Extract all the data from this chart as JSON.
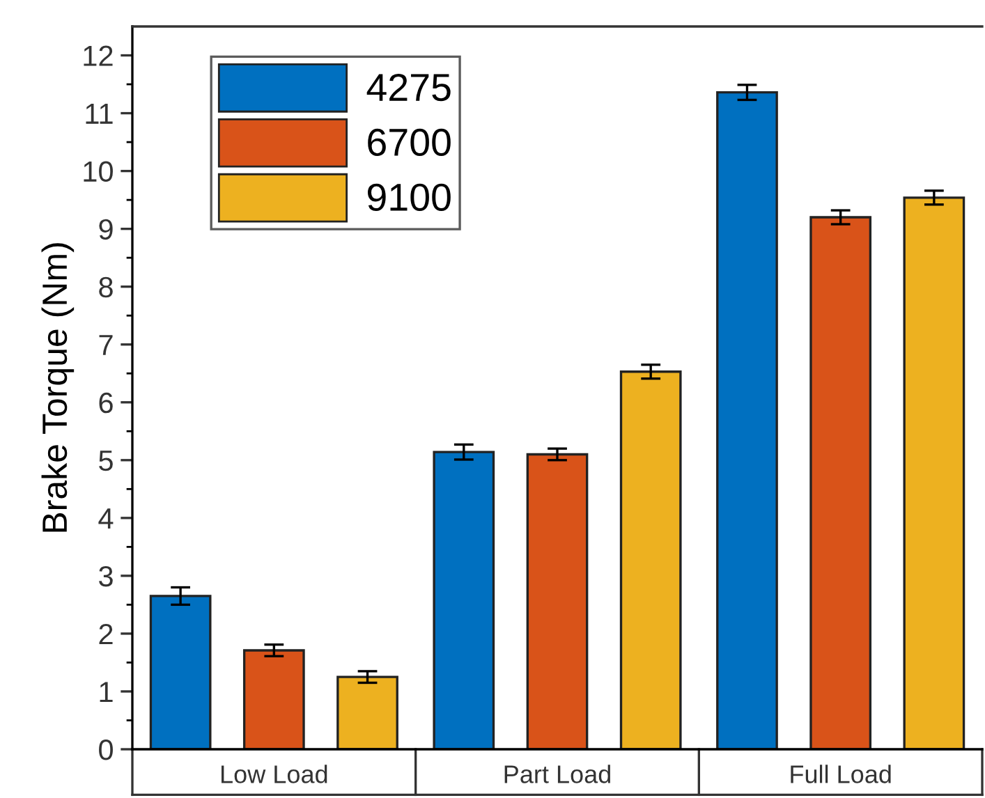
{
  "chart_data": {
    "type": "bar",
    "ylabel": "Brake Torque (Nm)",
    "categories": [
      "Low Load",
      "Part Load",
      "Full Load"
    ],
    "series": [
      {
        "name": "4275",
        "color": "#0070c0",
        "values": [
          2.65,
          5.14,
          11.36
        ],
        "errors": [
          0.15,
          0.13,
          0.13
        ]
      },
      {
        "name": "6700",
        "color": "#d95319",
        "values": [
          1.71,
          5.1,
          9.2
        ],
        "errors": [
          0.1,
          0.1,
          0.12
        ]
      },
      {
        "name": "9100",
        "color": "#edb120",
        "values": [
          1.25,
          6.53,
          9.54
        ],
        "errors": [
          0.1,
          0.12,
          0.12
        ]
      }
    ],
    "ylim": [
      0,
      12.5
    ],
    "yticks": [
      0,
      1,
      2,
      3,
      4,
      5,
      6,
      7,
      8,
      9,
      10,
      11,
      12
    ],
    "grid": false,
    "legend": "top left"
  }
}
